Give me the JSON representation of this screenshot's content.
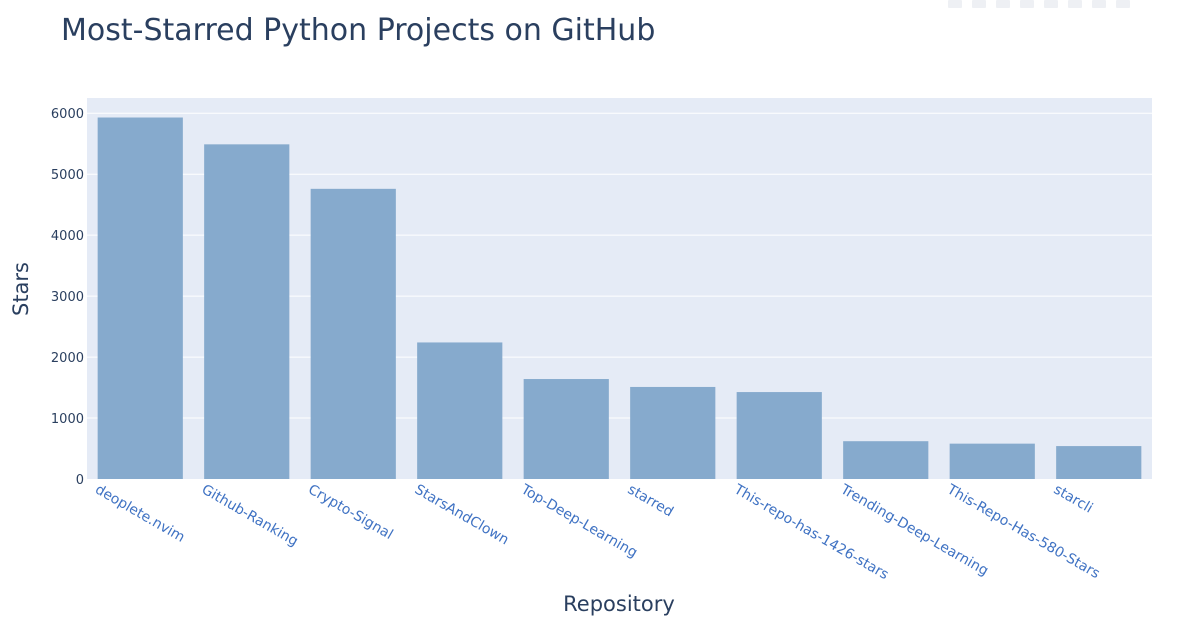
{
  "title": "Most-Starred Python Projects on GitHub",
  "chart_data": {
    "type": "bar",
    "title": "Most-Starred Python Projects on GitHub",
    "xlabel": "Repository",
    "ylabel": "Stars",
    "categories": [
      "deoplete.nvim",
      "Github-Ranking",
      "Crypto-Signal",
      "StarsAndClown",
      "Top-Deep-Learning",
      "starred",
      "This-repo-has-1426-stars",
      "Trending-Deep-Learning",
      "This-Repo-Has-580-Stars",
      "starcli"
    ],
    "values": [
      5930,
      5490,
      4760,
      2240,
      1640,
      1510,
      1426,
      620,
      580,
      540
    ],
    "ylim": [
      0,
      6250
    ],
    "yticks": [
      0,
      1000,
      2000,
      3000,
      4000,
      5000,
      6000
    ],
    "grid": true,
    "legend": "none",
    "colors": {
      "bar": "#86aacd",
      "plot_bg": "#e5ebf6",
      "grid": "#ffffff",
      "tick_x": "#3f72c3",
      "text": "#2a3f5f"
    }
  }
}
